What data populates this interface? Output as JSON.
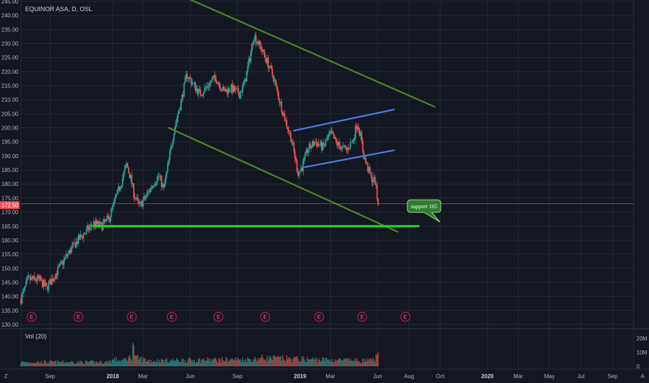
{
  "colors": {
    "background": "#131722",
    "grid": "#262a36",
    "up_candle": "#26a69a",
    "down_candle": "#ef5350",
    "channel_green": "#4e8a25",
    "channel_blue": "#4f7fe8",
    "support_line": "#19e01b",
    "price_tag": "#ef5350",
    "earnings": "#c2185b"
  },
  "header": {
    "symbol_title": "EQUINOR ASA, D, OSL"
  },
  "volume_pane": {
    "label": "Vol (20)",
    "ticks": [
      "20M",
      "10M",
      "0"
    ]
  },
  "price_tag": {
    "value": "172.50"
  },
  "callout": {
    "text": "support 165"
  },
  "earnings_marker": {
    "glyph": "E"
  },
  "corner": {
    "left": "Z",
    "right": "A"
  },
  "chart_data": {
    "type": "candlestick",
    "title": "EQUINOR ASA, D, OSL",
    "ylim": [
      129,
      245
    ],
    "y_ticks": [
      130,
      135,
      140,
      145,
      150,
      155,
      160,
      165,
      170,
      175,
      180,
      185,
      190,
      195,
      200,
      205,
      210,
      215,
      220,
      225,
      230,
      235,
      240,
      245
    ],
    "x_tick_labels": [
      "Sep",
      "2018",
      "Mar",
      "Jun",
      "Sep",
      "2019",
      "Mar",
      "Jun",
      "Aug",
      "Oct",
      "2020",
      "Mar",
      "May",
      "Jul",
      "Sep"
    ],
    "x_year_labels": [
      "2018",
      "2019",
      "2020"
    ],
    "x_tick_dates": [
      "2017-09-01",
      "2018-01-01",
      "2018-03-01",
      "2018-06-01",
      "2018-09-01",
      "2019-01-01",
      "2019-03-01",
      "2019-06-01",
      "2019-08-01",
      "2019-10-01",
      "2020-01-01",
      "2020-03-01",
      "2020-05-01",
      "2020-07-01",
      "2020-09-01"
    ],
    "x_range": [
      "2017-07-06",
      "2020-10-12"
    ],
    "price_path": [
      [
        "2017-07-06",
        139
      ],
      [
        "2017-07-20",
        146
      ],
      [
        "2017-08-10",
        146
      ],
      [
        "2017-08-25",
        143
      ],
      [
        "2017-09-15",
        149
      ],
      [
        "2017-10-05",
        155
      ],
      [
        "2017-10-25",
        160
      ],
      [
        "2017-11-15",
        164
      ],
      [
        "2017-11-25",
        166
      ],
      [
        "2017-12-10",
        165
      ],
      [
        "2017-12-25",
        168
      ],
      [
        "2018-01-05",
        174
      ],
      [
        "2018-01-20",
        182
      ],
      [
        "2018-01-28",
        187
      ],
      [
        "2018-02-05",
        182
      ],
      [
        "2018-02-12",
        176
      ],
      [
        "2018-02-22",
        172
      ],
      [
        "2018-03-05",
        175
      ],
      [
        "2018-03-20",
        180
      ],
      [
        "2018-04-01",
        183
      ],
      [
        "2018-04-10",
        178
      ],
      [
        "2018-04-20",
        188
      ],
      [
        "2018-05-01",
        200
      ],
      [
        "2018-05-15",
        210
      ],
      [
        "2018-05-25",
        219
      ],
      [
        "2018-06-05",
        216
      ],
      [
        "2018-06-20",
        212
      ],
      [
        "2018-07-05",
        215
      ],
      [
        "2018-07-20",
        218
      ],
      [
        "2018-08-05",
        213
      ],
      [
        "2018-08-20",
        214
      ],
      [
        "2018-09-05",
        212
      ],
      [
        "2018-09-15",
        216
      ],
      [
        "2018-09-25",
        225
      ],
      [
        "2018-10-03",
        233
      ],
      [
        "2018-10-15",
        229
      ],
      [
        "2018-10-28",
        224
      ],
      [
        "2018-11-10",
        218
      ],
      [
        "2018-11-20",
        211
      ],
      [
        "2018-12-01",
        204
      ],
      [
        "2018-12-15",
        196
      ],
      [
        "2018-12-28",
        184
      ],
      [
        "2019-01-05",
        186
      ],
      [
        "2019-01-15",
        192
      ],
      [
        "2019-01-30",
        195
      ],
      [
        "2019-02-15",
        193
      ],
      [
        "2019-03-01",
        198
      ],
      [
        "2019-03-15",
        194
      ],
      [
        "2019-04-01",
        192
      ],
      [
        "2019-04-15",
        196
      ],
      [
        "2019-04-22",
        202
      ],
      [
        "2019-04-28",
        198
      ],
      [
        "2019-05-05",
        190
      ],
      [
        "2019-05-12",
        186
      ],
      [
        "2019-05-20",
        182
      ],
      [
        "2019-05-27",
        181
      ],
      [
        "2019-06-02",
        172.5
      ]
    ],
    "volume_path": [
      [
        "2017-07-06",
        3
      ],
      [
        "2017-12-20",
        3
      ],
      [
        "2018-01-05",
        5
      ],
      [
        "2018-01-20",
        4
      ],
      [
        "2018-02-07",
        7
      ],
      [
        "2018-02-08",
        22
      ],
      [
        "2018-02-09",
        18
      ],
      [
        "2018-02-10",
        14
      ],
      [
        "2018-02-15",
        6
      ],
      [
        "2018-03-15",
        4
      ],
      [
        "2018-10-01",
        5
      ],
      [
        "2018-10-20",
        6
      ],
      [
        "2019-01-10",
        5
      ],
      [
        "2019-05-20",
        4
      ],
      [
        "2019-06-02",
        7
      ]
    ],
    "earnings_dates": [
      "2017-07-27",
      "2017-10-26",
      "2018-02-07",
      "2018-04-26",
      "2018-07-26",
      "2018-10-25",
      "2019-02-07",
      "2019-05-02",
      "2019-07-25"
    ],
    "current_price": 172.5,
    "horizontal_line": 173,
    "annotations": [
      {
        "type": "trend-line",
        "name": "upper descending channel",
        "color": "channel_green",
        "points": [
          [
            "2018-04-20",
            249
          ],
          [
            "2019-09-20",
            207.5
          ]
        ]
      },
      {
        "type": "trend-line",
        "name": "lower descending channel",
        "color": "channel_green",
        "points": [
          [
            "2018-04-20",
            200
          ],
          [
            "2019-07-10",
            163
          ]
        ]
      },
      {
        "type": "trend-line",
        "name": "upper rising channel",
        "color": "channel_blue",
        "points": [
          [
            "2018-12-20",
            199
          ],
          [
            "2019-07-03",
            206.5
          ]
        ]
      },
      {
        "type": "trend-line",
        "name": "lower rising channel",
        "color": "channel_blue",
        "points": [
          [
            "2019-01-10",
            186
          ],
          [
            "2019-07-03",
            192
          ]
        ]
      },
      {
        "type": "horizontal-segment",
        "name": "support",
        "color": "support_line",
        "points": [
          [
            "2017-11-25",
            165
          ],
          [
            "2019-08-20",
            165
          ]
        ]
      }
    ],
    "grid": true
  }
}
